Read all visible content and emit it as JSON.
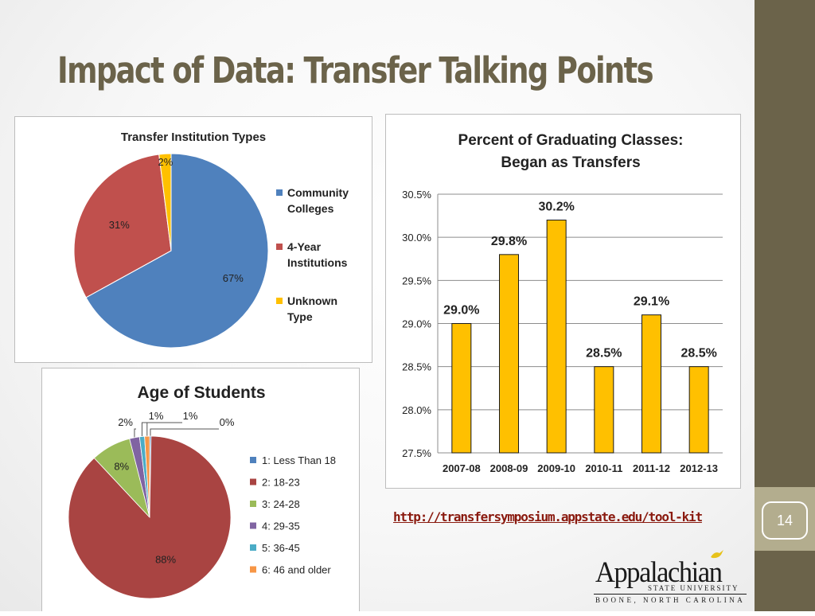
{
  "slide": {
    "title": "Impact of Data: Transfer Talking Points",
    "page_number": "14",
    "url": "http://transfersymposium.appstate.edu/tool-kit",
    "logo": {
      "name": "Appalachian",
      "subtitle": "STATE UNIVERSITY",
      "location": "BOONE, NORTH CAROLINA"
    }
  },
  "colors": {
    "accent": "#6b634a",
    "pie_blue": "#4f81bd",
    "pie_red": "#c0504d",
    "pie_gold": "#ffc000",
    "bar_gold": "#ffc000",
    "link": "#8a1a0f"
  },
  "chart_data": [
    {
      "type": "pie",
      "title": "Transfer Institution Types",
      "legend_position": "right",
      "slices": [
        {
          "label": "Community Colleges",
          "value": 67,
          "display": "67%",
          "color": "#4f81bd"
        },
        {
          "label": "4-Year Institutions",
          "value": 31,
          "display": "31%",
          "color": "#c0504d"
        },
        {
          "label": "Unknown Type",
          "value": 2,
          "display": "2%",
          "color": "#ffc000"
        }
      ]
    },
    {
      "type": "bar",
      "title": "Percent of Graduating Classes:",
      "subtitle": "Began as Transfers",
      "categories": [
        "2007-08",
        "2008-09",
        "2009-10",
        "2010-11",
        "2011-12",
        "2012-13"
      ],
      "values": [
        29.0,
        29.8,
        30.2,
        28.5,
        29.1,
        28.5
      ],
      "data_labels": [
        "29.0%",
        "29.8%",
        "30.2%",
        "28.5%",
        "29.1%",
        "28.5%"
      ],
      "ylim": [
        27.5,
        30.5
      ],
      "yticks": [
        27.5,
        28.0,
        28.5,
        29.0,
        29.5,
        30.0,
        30.5
      ],
      "ytick_labels": [
        "27.5%",
        "28.0%",
        "28.5%",
        "29.0%",
        "29.5%",
        "30.0%",
        "30.5%"
      ],
      "grid": true,
      "color": "#ffc000"
    },
    {
      "type": "pie",
      "title": "Age of Students",
      "legend_position": "right",
      "slices": [
        {
          "label": "1: Less Than 18",
          "value": 0.3,
          "display": "0%",
          "color": "#4f81bd"
        },
        {
          "label": "2: 18-23",
          "value": 88,
          "display": "88%",
          "color": "#a94442"
        },
        {
          "label": "3: 24-28",
          "value": 8,
          "display": "8%",
          "color": "#9bbb59"
        },
        {
          "label": "4: 29-35",
          "value": 2,
          "display": "2%",
          "color": "#8064a2"
        },
        {
          "label": "5: 36-45",
          "value": 1,
          "display": "1%",
          "color": "#4bacc6"
        },
        {
          "label": "6: 46 and older",
          "value": 1,
          "display": "1%",
          "color": "#f79646"
        }
      ]
    }
  ]
}
